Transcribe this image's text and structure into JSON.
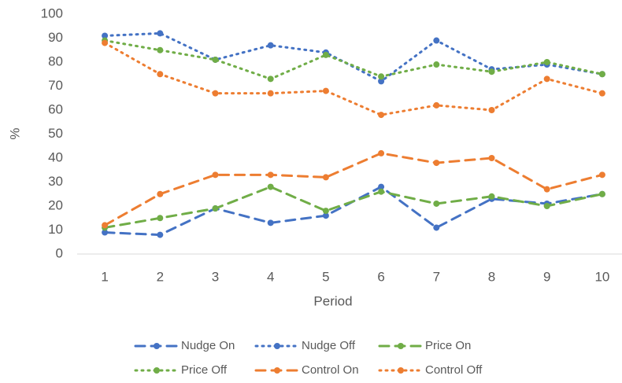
{
  "chart_data": {
    "type": "line",
    "x_label": "Period",
    "y_label": "%",
    "categories": [
      "1",
      "2",
      "3",
      "4",
      "5",
      "6",
      "7",
      "8",
      "9",
      "10"
    ],
    "ylim": [
      0,
      100
    ],
    "yticks": [
      0,
      10,
      20,
      30,
      40,
      50,
      60,
      70,
      80,
      90,
      100
    ],
    "grid": false,
    "series": [
      {
        "name": "Nudge On",
        "color": "#4472c4",
        "dash": "dashed",
        "values": [
          9,
          8,
          19,
          13,
          16,
          28,
          11,
          23,
          21,
          25
        ]
      },
      {
        "name": "Nudge Off",
        "color": "#4472c4",
        "dash": "dotted",
        "values": [
          91,
          92,
          81,
          87,
          84,
          72,
          89,
          77,
          79,
          75
        ]
      },
      {
        "name": "Price On",
        "color": "#70ad47",
        "dash": "dashed",
        "values": [
          11,
          15,
          19,
          28,
          18,
          26,
          21,
          24,
          20,
          25
        ]
      },
      {
        "name": "Price Off",
        "color": "#70ad47",
        "dash": "dotted",
        "values": [
          89,
          85,
          81,
          73,
          83,
          74,
          79,
          76,
          80,
          75
        ]
      },
      {
        "name": "Control On",
        "color": "#ed7d31",
        "dash": "dashed",
        "values": [
          12,
          25,
          33,
          33,
          32,
          42,
          38,
          40,
          27,
          33
        ]
      },
      {
        "name": "Control Off",
        "color": "#ed7d31",
        "dash": "dotted",
        "values": [
          88,
          75,
          67,
          67,
          68,
          58,
          62,
          60,
          73,
          67
        ]
      }
    ]
  }
}
